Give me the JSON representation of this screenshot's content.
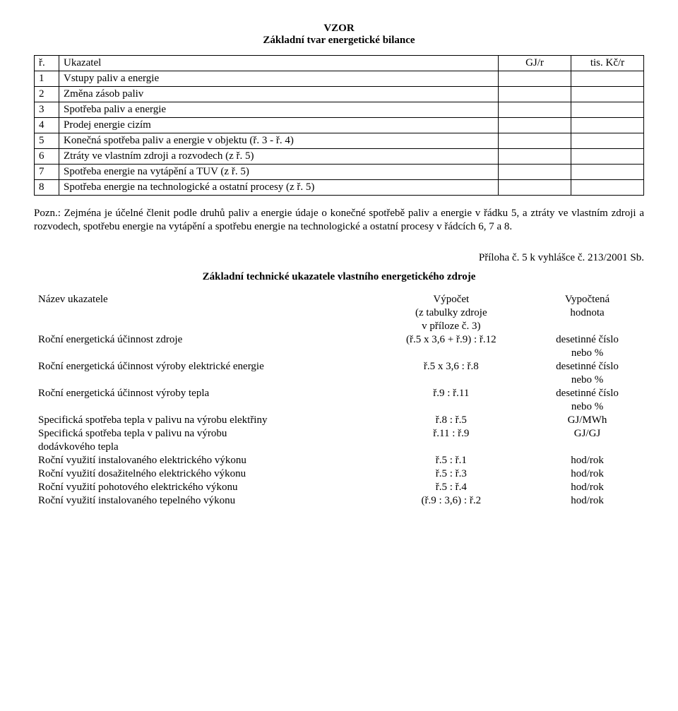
{
  "heading": {
    "vzor": "VZOR",
    "subtitle": "Základní tvar energetické bilance"
  },
  "table1": {
    "header": {
      "r": "ř.",
      "uk": "Ukazatel",
      "gj": "GJ/r",
      "kc": "tis. Kč/r"
    },
    "rows": [
      {
        "n": "1",
        "label": "Vstupy paliv a energie"
      },
      {
        "n": "2",
        "label": "Změna zásob paliv"
      },
      {
        "n": "3",
        "label": "Spotřeba paliv a energie"
      },
      {
        "n": "4",
        "label": "Prodej energie cizím"
      },
      {
        "n": "5",
        "label": "Konečná spotřeba paliv a energie v objektu (ř. 3 - ř. 4)"
      },
      {
        "n": "6",
        "label": "Ztráty ve vlastním zdroji a rozvodech (z ř. 5)"
      },
      {
        "n": "7",
        "label": "Spotřeba energie na vytápění a TUV (z ř. 5)"
      },
      {
        "n": "8",
        "label": "Spotřeba energie na technologické a ostatní procesy (z ř. 5)"
      }
    ]
  },
  "note": "Pozn.: Zejména je účelné členit podle druhů paliv a energie údaje o konečné spotřebě paliv a energie v řádku 5, a ztráty ve vlastním zdroji a rozvodech, spotřebu energie na vytápění a spotřebu energie na technologické a ostatní procesy v řádcích 6, 7 a 8.",
  "annex": "Příloha č. 5 k vyhlášce č. 213/2001 Sb.",
  "section_title": "Základní technické ukazatele vlastního energetického zdroje",
  "table2": {
    "header": {
      "c1": "Název ukazatele",
      "c2a": "Výpočet",
      "c2b": "(z tabulky zdroje",
      "c2c": "v příloze č. 3)",
      "c3a": "Vypočtená",
      "c3b": "hodnota"
    },
    "rows": [
      {
        "c1": "Roční energetická účinnost zdroje",
        "c2": "(ř.5 x 3,6 + ř.9) : ř.12",
        "c3a": "desetinné číslo",
        "c3b": "nebo %"
      },
      {
        "c1": "Roční energetická účinnost výroby elektrické energie",
        "c2": "ř.5 x 3,6 : ř.8",
        "c3a": "desetinné číslo",
        "c3b": "nebo %"
      },
      {
        "c1": "Roční energetická účinnost výroby tepla",
        "c2": "ř.9 : ř.11",
        "c3a": "desetinné číslo",
        "c3b": "nebo %"
      },
      {
        "c1": "Specifická spotřeba tepla v palivu na výrobu elektřiny",
        "c2": "ř.8 : ř.5",
        "c3a": "GJ/MWh",
        "c3b": ""
      },
      {
        "c1": "Specifická spotřeba tepla v palivu na výrobu\ndodávkového tepla",
        "c2": "ř.11 : ř.9",
        "c3a": "GJ/GJ",
        "c3b": ""
      },
      {
        "c1": "Roční využití instalovaného elektrického výkonu",
        "c2": "ř.5 : ř.1",
        "c3a": "hod/rok",
        "c3b": ""
      },
      {
        "c1": "Roční využití dosažitelného elektrického výkonu",
        "c2": "ř.5 : ř.3",
        "c3a": "hod/rok",
        "c3b": ""
      },
      {
        "c1": "Roční využití pohotového elektrického výkonu",
        "c2": "ř.5 : ř.4",
        "c3a": "hod/rok",
        "c3b": ""
      },
      {
        "c1": "Roční využití instalovaného tepelného výkonu",
        "c2": "(ř.9 : 3,6) : ř.2",
        "c3a": "hod/rok",
        "c3b": ""
      }
    ]
  }
}
